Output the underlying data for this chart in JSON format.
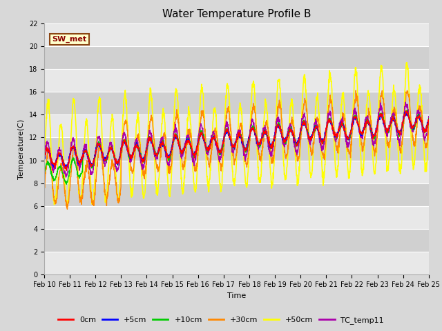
{
  "title": "Water Temperature Profile B",
  "xlabel": "Time",
  "ylabel": "Temperature(C)",
  "ylim": [
    0,
    22
  ],
  "yticks": [
    0,
    2,
    4,
    6,
    8,
    10,
    12,
    14,
    16,
    18,
    20,
    22
  ],
  "background_color": "#d8d8d8",
  "plot_bg_color": "#d8d8d8",
  "band_colors": [
    "#e8e8e8",
    "#d0d0d0"
  ],
  "grid_color": "#ffffff",
  "series": {
    "0cm": {
      "color": "#ff0000",
      "lw": 1.0
    },
    "+5cm": {
      "color": "#0000ff",
      "lw": 1.0
    },
    "+10cm": {
      "color": "#00cc00",
      "lw": 1.0
    },
    "+30cm": {
      "color": "#ff8800",
      "lw": 1.0
    },
    "+50cm": {
      "color": "#ffff00",
      "lw": 1.2
    },
    "TC_temp11": {
      "color": "#aa00aa",
      "lw": 1.0
    }
  },
  "annotation_label": "SW_met",
  "annotation_color": "#8b0000",
  "annotation_bg": "#ffffcc",
  "annotation_border": "#8b4513",
  "xticklabels": [
    "Feb 10",
    "Feb 11",
    "Feb 12",
    "Feb 13",
    "Feb 14",
    "Feb 15",
    "Feb 16",
    "Feb 17",
    "Feb 18",
    "Feb 19",
    "Feb 20",
    "Feb 21",
    "Feb 22",
    "Feb 23",
    "Feb 24",
    "Feb 25"
  ],
  "n_days": 15,
  "title_fontsize": 11,
  "label_fontsize": 8,
  "tick_fontsize": 7,
  "legend_fontsize": 8
}
